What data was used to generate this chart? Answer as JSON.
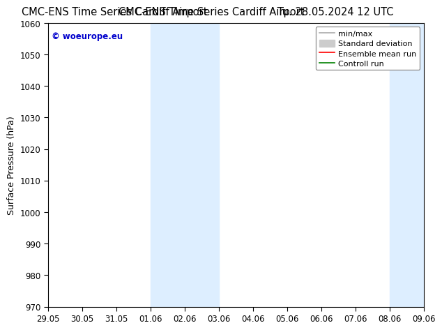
{
  "title_left": "CMC-ENS Time Series Cardiff Airport",
  "title_right": "Tu. 28.05.2024 12 UTC",
  "ylabel": "Surface Pressure (hPa)",
  "xlabel": "",
  "ylim": [
    970,
    1060
  ],
  "yticks": [
    970,
    980,
    990,
    1000,
    1010,
    1020,
    1030,
    1040,
    1050,
    1060
  ],
  "xtick_labels": [
    "29.05",
    "30.05",
    "31.05",
    "01.06",
    "02.06",
    "03.06",
    "04.06",
    "05.06",
    "06.06",
    "07.06",
    "08.06",
    "09.06"
  ],
  "xtick_positions": [
    0,
    1,
    2,
    3,
    4,
    5,
    6,
    7,
    8,
    9,
    10,
    11
  ],
  "shaded_regions": [
    {
      "x_start": 3,
      "x_end": 5
    },
    {
      "x_start": 10,
      "x_end": 11
    }
  ],
  "shade_color": "#ddeeff",
  "watermark_text": "© woeurope.eu",
  "watermark_color": "#0000cc",
  "bg_color": "#ffffff",
  "title_fontsize": 10.5,
  "label_fontsize": 9,
  "tick_fontsize": 8.5,
  "legend_fontsize": 8
}
